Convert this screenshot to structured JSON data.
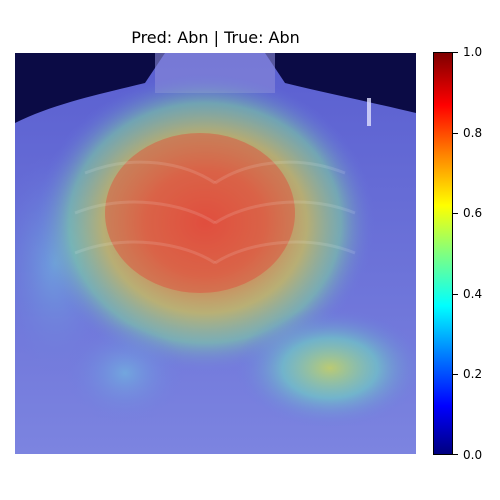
{
  "figure": {
    "title": "Pred: Abn | True: Abn"
  },
  "colorbar": {
    "colormap": "jet",
    "range": [
      0.0,
      1.0
    ],
    "ticks": [
      "0.0",
      "0.2",
      "0.4",
      "0.6",
      "0.8",
      "1.0"
    ]
  },
  "image": {
    "content": "chest x-ray with Grad-CAM heatmap overlay"
  }
}
